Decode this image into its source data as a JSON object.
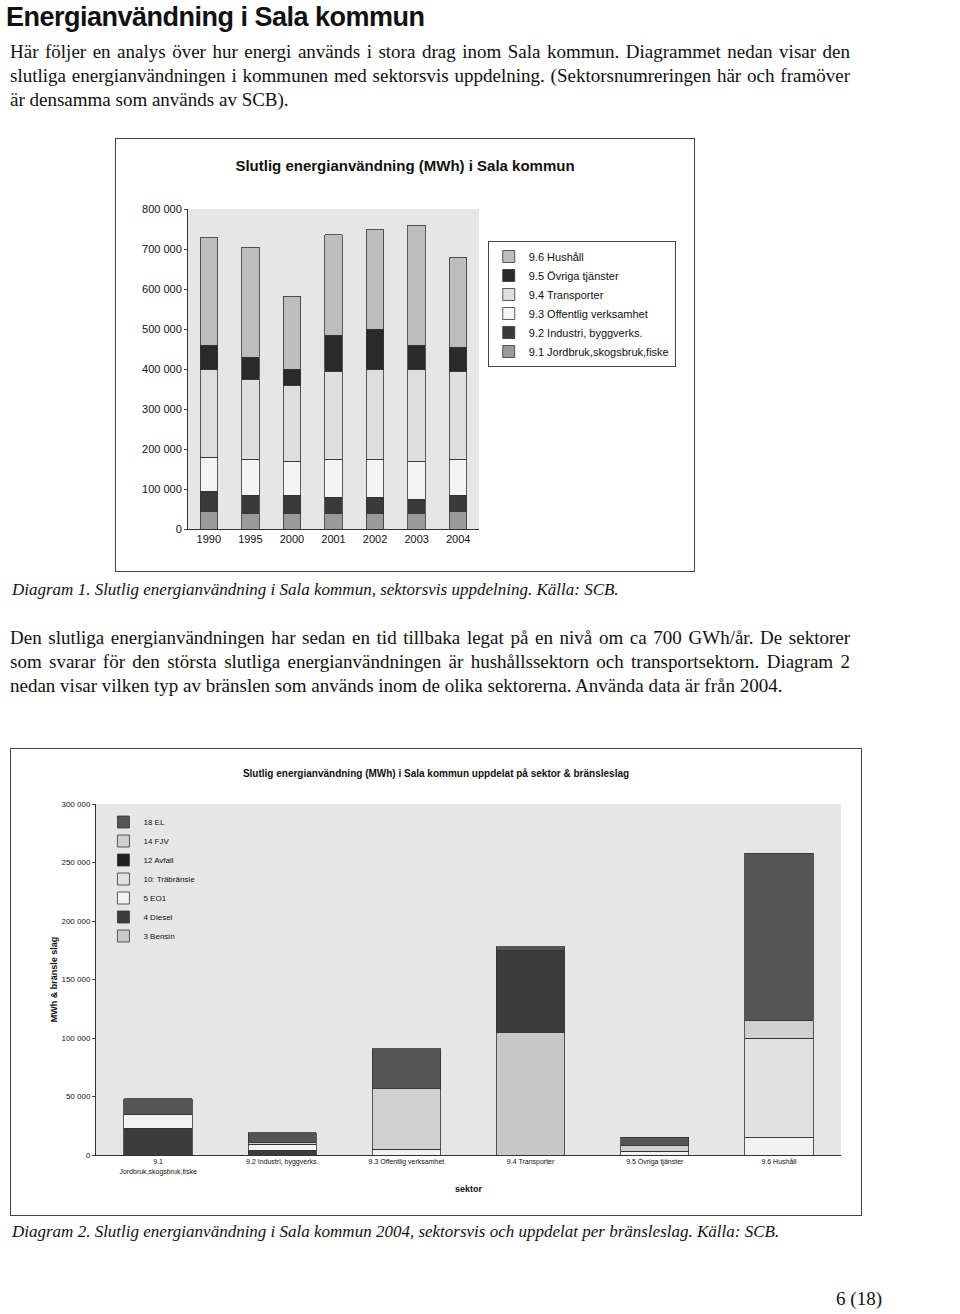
{
  "heading": "Energianvändning i Sala kommun",
  "paragraphs": [
    "Här följer en analys över hur energi används i stora drag inom Sala kommun. Diagrammet nedan visar den slutliga energianvändningen i kommunen med sektorsvis uppdelning. (Sektorsnumreringen här och framöver är densamma som används av SCB).",
    "Den slutliga energianvändningen har sedan en tid tillbaka legat på en nivå om ca 700 GWh/år. De sektorer som svarar för den största slutliga energianvändningen är hushållssektorn och transportsektorn. Diagram 2 nedan visar vilken typ av bränslen som används inom de olika sektorerna. Använda data är från 2004."
  ],
  "captions": [
    "Diagram 1. Slutlig energianvändning i Sala kommun, sektorsvis uppdelning. Källa: SCB.",
    "Diagram 2. Slutlig energianvändning i Sala kommun 2004, sektorsvis och uppdelat per bränsleslag. Källa: SCB."
  ],
  "page_number": "6 (18)",
  "chart_data": [
    {
      "type": "bar",
      "title": "Slutlig energianvändning (MWh) i Sala kommun",
      "stacked": true,
      "grid": false,
      "legend": "right",
      "categories": [
        "1990",
        "1995",
        "2000",
        "2001",
        "2002",
        "2003",
        "2004"
      ],
      "series": [
        {
          "name": "9.1 Jordbruk,skogsbruk,fiske",
          "color": "#9a9a9a",
          "values": [
            45000,
            40000,
            40000,
            40000,
            40000,
            40000,
            45000
          ]
        },
        {
          "name": "9.2 Industri, byggverks.",
          "color": "#3a3a3a",
          "values": [
            50000,
            45000,
            45000,
            40000,
            40000,
            35000,
            40000
          ]
        },
        {
          "name": "9.3 Offentlig verksamhet",
          "color": "#f4f4f4",
          "values": [
            85000,
            90000,
            85000,
            95000,
            95000,
            95000,
            90000
          ]
        },
        {
          "name": "9.4 Transporter",
          "color": "#dedede",
          "values": [
            220000,
            200000,
            190000,
            220000,
            225000,
            230000,
            220000
          ]
        },
        {
          "name": "9.5 Övriga tjänster",
          "color": "#2a2a2a",
          "values": [
            60000,
            55000,
            40000,
            90000,
            100000,
            60000,
            60000
          ]
        },
        {
          "name": "9.6 Hushåll",
          "color": "#bdbdbd",
          "values": [
            268000,
            275000,
            182000,
            251000,
            248000,
            300000,
            225000
          ]
        }
      ],
      "ylim": [
        0,
        800000
      ],
      "yticks": [
        0,
        {
          "value": 100000,
          "label": "100 000"
        },
        {
          "value": 200000,
          "label": "200 000"
        },
        {
          "value": 300000,
          "label": "300 000"
        },
        {
          "value": 400000,
          "label": "400 000"
        },
        {
          "value": 500000,
          "label": "500 000"
        },
        {
          "value": 600000,
          "label": "600 000"
        },
        {
          "value": 700000,
          "label": "700 000"
        },
        {
          "value": 800000,
          "label": "800 000"
        }
      ]
    },
    {
      "type": "bar",
      "title": "Slutlig energianvändning (MWh) i Sala kommun uppdelat på sektor & bränsleslag",
      "x_label": "sektor",
      "y_label": "MWh & bränsle slag",
      "stacked": true,
      "grid": false,
      "legend": "upper left",
      "categories": [
        "9.1 Jordbruk,skogsbruk,fiske",
        "9.2 Industri, byggverks.",
        "9.3 Offentlig verksamhet",
        "9.4 Transporter",
        "9.5 Övriga tjänster",
        "9.6 Hushåll"
      ],
      "series": [
        {
          "name": "3 Bensin",
          "color": "#c8c8c8",
          "values": [
            0,
            0,
            0,
            105000,
            0,
            0
          ]
        },
        {
          "name": "4 Diesel",
          "color": "#3c3c3c",
          "values": [
            23000,
            4000,
            0,
            70000,
            0,
            0
          ]
        },
        {
          "name": "5 EO1",
          "color": "#f2f2f2",
          "values": [
            12000,
            5000,
            5000,
            0,
            3000,
            15000
          ]
        },
        {
          "name": "10: Träbränsle",
          "color": "#e2e2e2",
          "values": [
            0,
            0,
            0,
            0,
            0,
            85000
          ]
        },
        {
          "name": "12 Avfall",
          "color": "#202020",
          "values": [
            0,
            0,
            0,
            0,
            0,
            0
          ]
        },
        {
          "name": "14 FJV",
          "color": "#d0d0d0",
          "values": [
            0,
            2000,
            52000,
            0,
            5000,
            15000
          ]
        },
        {
          "name": "18 EL",
          "color": "#555555",
          "values": [
            13000,
            8000,
            34000,
            3000,
            7000,
            143000
          ]
        }
      ],
      "ylim": [
        0,
        300000
      ],
      "yticks": [
        0,
        {
          "value": 50000,
          "label": "50 000"
        },
        {
          "value": 100000,
          "label": "100 000"
        },
        {
          "value": 150000,
          "label": "150 000"
        },
        {
          "value": 200000,
          "label": "200 000"
        },
        {
          "value": 250000,
          "label": "250 000"
        },
        {
          "value": 300000,
          "label": "300 000"
        }
      ]
    }
  ]
}
